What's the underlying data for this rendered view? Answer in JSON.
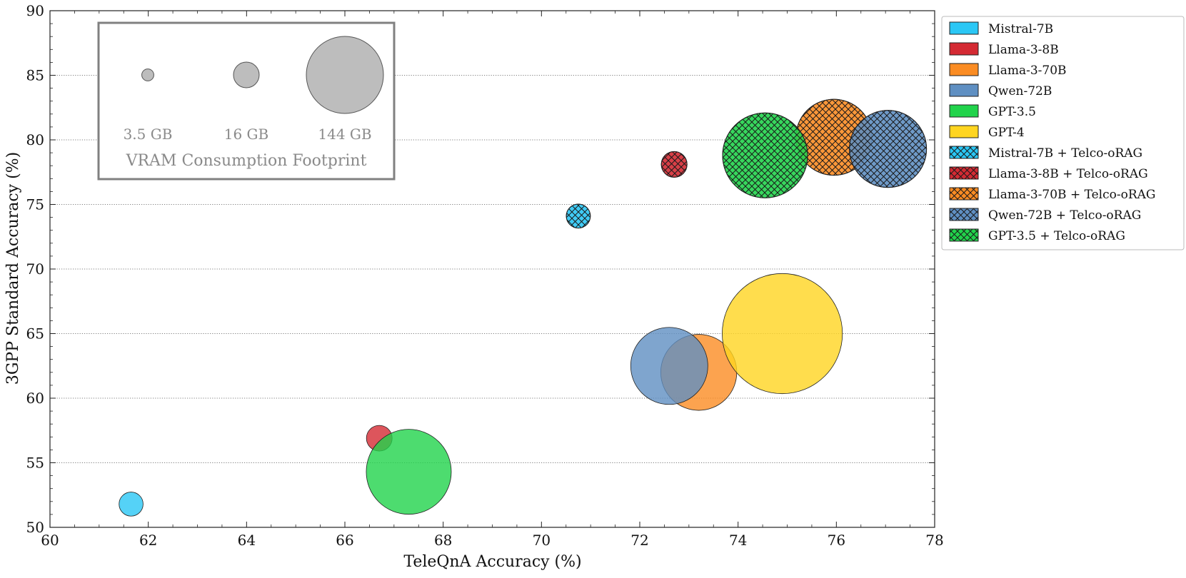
{
  "chart_data": {
    "type": "scatter",
    "subtype": "bubble",
    "title": "",
    "xlabel": "TeleQnA Accuracy (%)",
    "ylabel": "3GPP Standard Accuracy (%)",
    "xlim": [
      60,
      78
    ],
    "ylim": [
      50,
      90
    ],
    "xticks": [
      "60",
      "62",
      "64",
      "66",
      "68",
      "70",
      "72",
      "74",
      "76",
      "78"
    ],
    "yticks": [
      "50",
      "55",
      "60",
      "65",
      "70",
      "75",
      "80",
      "85",
      "90"
    ],
    "grid": "horizontal dotted",
    "legend_position": "outside right",
    "series": [
      {
        "name": "Mistral-7B",
        "color": "#2bc7f5",
        "hatched": false,
        "x": 61.65,
        "y": 51.8,
        "vram_gb": 14
      },
      {
        "name": "Llama-3-8B",
        "color": "#d42a33",
        "hatched": false,
        "x": 66.7,
        "y": 56.9,
        "vram_gb": 16
      },
      {
        "name": "Llama-3-70B",
        "color": "#fb8c23",
        "hatched": false,
        "x": 73.2,
        "y": 62.0,
        "vram_gb": 140
      },
      {
        "name": "Qwen-72B",
        "color": "#5f8fc2",
        "hatched": false,
        "x": 72.6,
        "y": 62.5,
        "vram_gb": 144
      },
      {
        "name": "GPT-3.5",
        "color": "#21d34b",
        "hatched": false,
        "x": 67.3,
        "y": 54.3,
        "vram_gb": 175
      },
      {
        "name": "GPT-4",
        "color": "#ffd520",
        "hatched": false,
        "x": 74.9,
        "y": 65.0,
        "vram_gb": 350
      },
      {
        "name": "Mistral-7B + Telco-oRAG",
        "color": "#2bc7f5",
        "hatched": true,
        "x": 70.75,
        "y": 74.1,
        "vram_gb": 14
      },
      {
        "name": "Llama-3-8B + Telco-oRAG",
        "color": "#d42a33",
        "hatched": true,
        "x": 72.7,
        "y": 78.1,
        "vram_gb": 16
      },
      {
        "name": "Llama-3-70B + Telco-oRAG",
        "color": "#fb8c23",
        "hatched": true,
        "x": 75.95,
        "y": 80.2,
        "vram_gb": 140
      },
      {
        "name": "Qwen-72B + Telco-oRAG",
        "color": "#5f8fc2",
        "hatched": true,
        "x": 77.05,
        "y": 79.3,
        "vram_gb": 144
      },
      {
        "name": "GPT-3.5 + Telco-oRAG",
        "color": "#21d34b",
        "hatched": true,
        "x": 74.55,
        "y": 78.8,
        "vram_gb": 175
      }
    ],
    "size_legend": {
      "title": "VRAM Consumption Footprint",
      "items": [
        {
          "label": "3.5 GB",
          "vram_gb": 3.5
        },
        {
          "label": "16 GB",
          "vram_gb": 16
        },
        {
          "label": "144 GB",
          "vram_gb": 144
        }
      ]
    }
  }
}
